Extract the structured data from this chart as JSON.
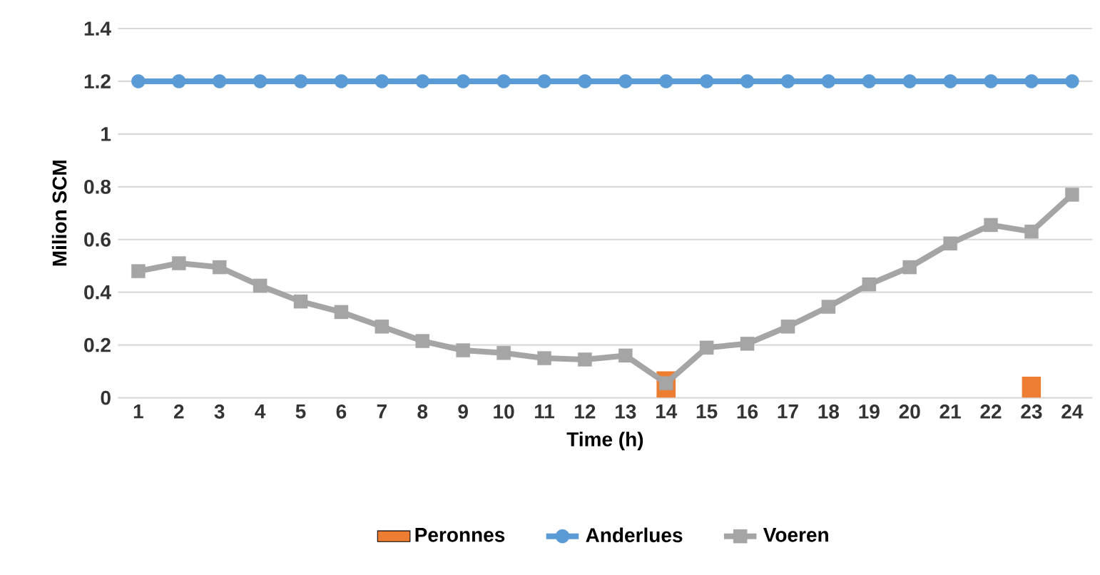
{
  "chart_data": {
    "type": "line",
    "xlabel": "Time (h)",
    "ylabel": "Milion SCM",
    "categories": [
      "1",
      "2",
      "3",
      "4",
      "5",
      "6",
      "7",
      "8",
      "9",
      "10",
      "11",
      "12",
      "13",
      "14",
      "15",
      "16",
      "17",
      "18",
      "19",
      "20",
      "21",
      "22",
      "23",
      "24"
    ],
    "series": [
      {
        "name": "Peronnes",
        "type": "bar",
        "color": "#ed7d31",
        "values": [
          null,
          null,
          null,
          null,
          null,
          null,
          null,
          null,
          null,
          null,
          null,
          null,
          null,
          0.1,
          null,
          null,
          null,
          null,
          null,
          null,
          null,
          null,
          0.08,
          null
        ]
      },
      {
        "name": "Anderlues",
        "marker": "circle",
        "color": "#5b9bd5",
        "values": [
          1.2,
          1.2,
          1.2,
          1.2,
          1.2,
          1.2,
          1.2,
          1.2,
          1.2,
          1.2,
          1.2,
          1.2,
          1.2,
          1.2,
          1.2,
          1.2,
          1.2,
          1.2,
          1.2,
          1.2,
          1.2,
          1.2,
          1.2,
          1.2
        ]
      },
      {
        "name": "Voeren",
        "marker": "square",
        "color": "#a5a5a5",
        "values": [
          0.48,
          0.51,
          0.495,
          0.425,
          0.365,
          0.325,
          0.27,
          0.215,
          0.18,
          0.17,
          0.15,
          0.145,
          0.16,
          0.055,
          0.19,
          0.205,
          0.27,
          0.345,
          0.43,
          0.495,
          0.585,
          0.655,
          0.63,
          0.77
        ]
      }
    ],
    "ylim": [
      0,
      1.4
    ],
    "yticks": [
      0,
      0.2,
      0.4,
      0.6,
      0.8,
      1,
      1.2,
      1.4
    ],
    "grid": "y",
    "legend": "bottom"
  }
}
